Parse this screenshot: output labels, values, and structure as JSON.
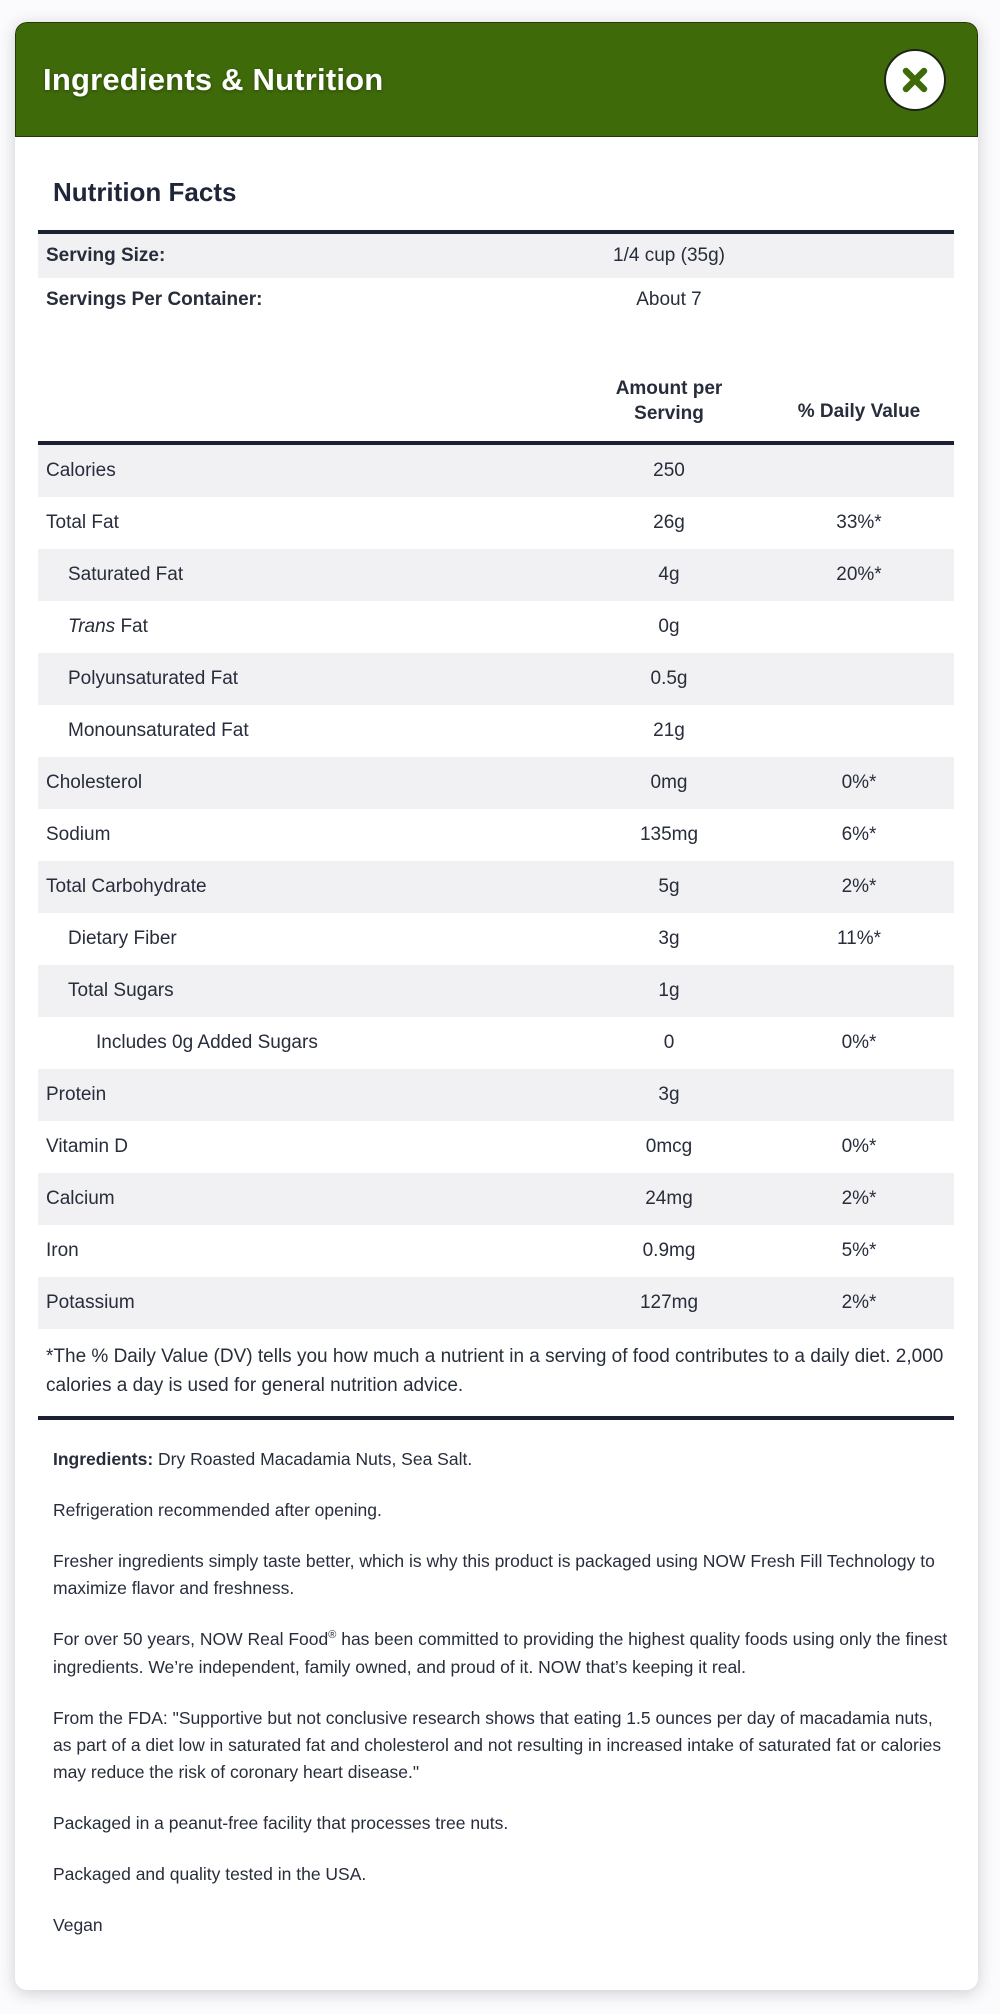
{
  "modal": {
    "title": "Ingredients & Nutrition",
    "close_icon": "close-icon"
  },
  "colors": {
    "header_green": "#3e6a0a",
    "text_dark": "#272d3b",
    "stripe_gray": "#f1f1f4",
    "rule_dark": "#1b2133"
  },
  "nutrition": {
    "heading": "Nutrition Facts",
    "serving_rows": [
      {
        "label": "Serving Size:",
        "value": "1/4 cup (35g)"
      },
      {
        "label": "Servings Per Container:",
        "value": "About 7"
      }
    ],
    "col_headers": {
      "amount": "Amount per Serving",
      "dv": "% Daily Value"
    },
    "rows": [
      {
        "label": "Calories",
        "amount": "250",
        "dv": "",
        "indent": 0
      },
      {
        "label": "Total Fat",
        "amount": "26g",
        "dv": "33%*",
        "indent": 0
      },
      {
        "label": "Saturated Fat",
        "amount": "4g",
        "dv": "20%*",
        "indent": 1
      },
      {
        "italic_prefix": "Trans",
        "label": " Fat",
        "amount": "0g",
        "dv": "",
        "indent": 1
      },
      {
        "label": "Polyunsaturated Fat",
        "amount": "0.5g",
        "dv": "",
        "indent": 1
      },
      {
        "label": "Monounsaturated Fat",
        "amount": "21g",
        "dv": "",
        "indent": 1
      },
      {
        "label": "Cholesterol",
        "amount": "0mg",
        "dv": "0%*",
        "indent": 0
      },
      {
        "label": "Sodium",
        "amount": "135mg",
        "dv": "6%*",
        "indent": 0
      },
      {
        "label": "Total Carbohydrate",
        "amount": "5g",
        "dv": "2%*",
        "indent": 0
      },
      {
        "label": "Dietary Fiber",
        "amount": "3g",
        "dv": "11%*",
        "indent": 1
      },
      {
        "label": "Total Sugars",
        "amount": "1g",
        "dv": "",
        "indent": 1
      },
      {
        "label": "Includes 0g Added Sugars",
        "amount": "0",
        "dv": "0%*",
        "indent": 2
      },
      {
        "label": "Protein",
        "amount": "3g",
        "dv": "",
        "indent": 0
      },
      {
        "label": "Vitamin D",
        "amount": "0mcg",
        "dv": "0%*",
        "indent": 0
      },
      {
        "label": "Calcium",
        "amount": "24mg",
        "dv": "2%*",
        "indent": 0
      },
      {
        "label": "Iron",
        "amount": "0.9mg",
        "dv": "5%*",
        "indent": 0
      },
      {
        "label": "Potassium",
        "amount": "127mg",
        "dv": "2%*",
        "indent": 0
      }
    ],
    "footnote": "*The % Daily Value (DV) tells you how much a nutrient in a serving of food contributes to a daily diet. 2,000 calories a day is used for general nutrition advice."
  },
  "details": {
    "paragraphs": [
      {
        "segments": [
          {
            "t": "Ingredients:",
            "b": true
          },
          {
            "t": " Dry Roasted Macadamia Nuts, Sea Salt."
          }
        ]
      },
      {
        "segments": [
          {
            "t": "Refrigeration recommended after opening."
          }
        ]
      },
      {
        "segments": [
          {
            "t": "Fresher ingredients simply taste better, which is why this product is packaged using NOW Fresh Fill Technology to maximize flavor and freshness."
          }
        ]
      },
      {
        "segments": [
          {
            "t": "For over 50 years, NOW Real Food"
          },
          {
            "t": "®",
            "sup": true
          },
          {
            "t": " has been committed to providing the highest quality foods using only the finest ingredients. We’re independent, family owned, and proud of it. NOW that’s keeping it real."
          }
        ]
      },
      {
        "segments": [
          {
            "t": "From the FDA: \"Supportive but not conclusive research shows that eating 1.5 ounces per day of macadamia nuts, as part of a diet low in saturated fat and cholesterol and not resulting in increased intake of saturated fat or calories may reduce the risk of coronary heart disease.\""
          }
        ]
      },
      {
        "segments": [
          {
            "t": "Packaged in a peanut-free facility that processes tree nuts."
          }
        ]
      },
      {
        "segments": [
          {
            "t": "Packaged and quality tested in the USA."
          }
        ]
      },
      {
        "segments": [
          {
            "t": "Vegan"
          }
        ]
      }
    ]
  }
}
